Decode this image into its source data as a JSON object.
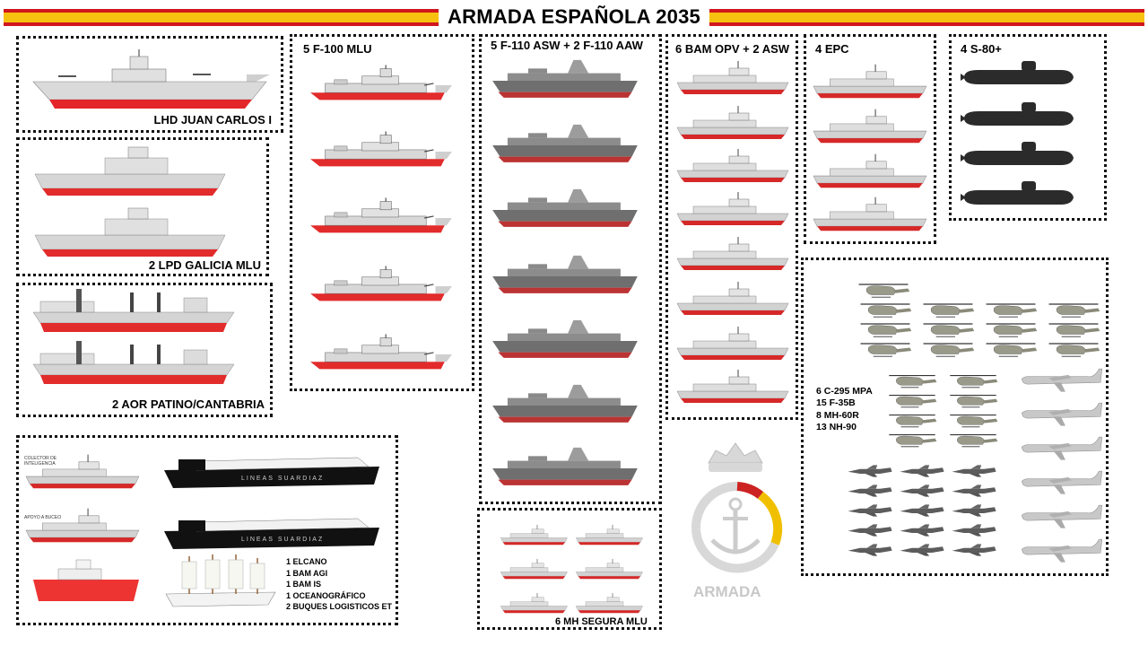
{
  "header": {
    "title": "ARMADA ESPAÑOLA 2035"
  },
  "colors": {
    "flag_red": "#d0161e",
    "flag_yellow": "#f7c20f",
    "hull_red": "#e8282a",
    "hull_grey": "#c8c8c8",
    "sub_dark": "#2a2a2a"
  },
  "sections": {
    "lhd": {
      "label": "LHD JUAN CARLOS I"
    },
    "lpd": {
      "label": "2 LPD GALICIA MLU"
    },
    "aor": {
      "label": "2 AOR PATINO/CANTABRIA"
    },
    "f100": {
      "label": "5 F-100 MLU"
    },
    "f110": {
      "label": "5 F-110 ASW + 2 F-110 AAW"
    },
    "bam": {
      "label": "6 BAM OPV + 2 ASW"
    },
    "epc": {
      "label": "4 EPC"
    },
    "subs": {
      "label": "4 S-80+"
    },
    "mh": {
      "label": "6 MH SEGURA MLU"
    },
    "aviation": {
      "lines": [
        "6 C-295 MPA",
        "15 F-35B",
        "8 MH-60R",
        "13 NH-90"
      ]
    },
    "misc": {
      "lines": [
        "1 ELCANO",
        "1 BAM AGI",
        "1 BAM IS",
        "1 OCEANOGRÁFICO",
        "2 BUQUES LOGISTICOS ET"
      ],
      "captions": [
        "COLECTOR DE INTELIGENCIA",
        "APOYO A BUCEO"
      ],
      "ferry_text": "LINEAS SUARDIAZ"
    },
    "logo": {
      "text": "ARMADA"
    }
  }
}
